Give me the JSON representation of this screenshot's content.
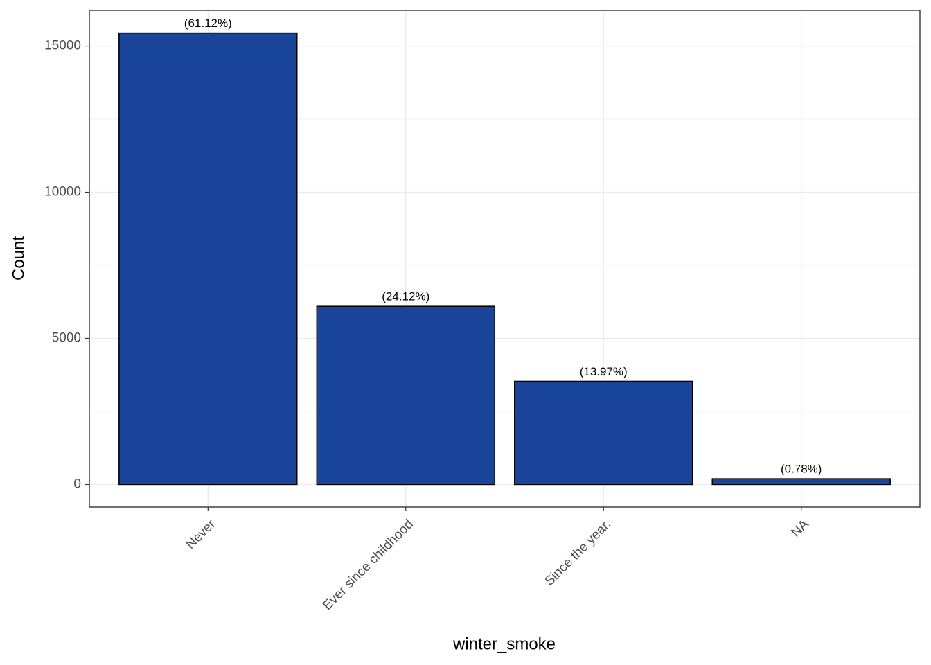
{
  "chart_data": {
    "type": "bar",
    "x_label": "winter_smoke",
    "y_label": "Count",
    "categories": [
      "Never",
      "Ever since childhood",
      "Since the year.",
      "NA"
    ],
    "values": [
      15450,
      6097,
      3531,
      197
    ],
    "bar_labels": [
      "(61.12%)",
      "(24.12%)",
      "(13.97%)",
      "(0.78%)"
    ],
    "color": "#18449a",
    "ylim": [
      -772,
      16222
    ],
    "yticks": [
      0,
      5000,
      10000,
      15000
    ],
    "grid": true
  }
}
